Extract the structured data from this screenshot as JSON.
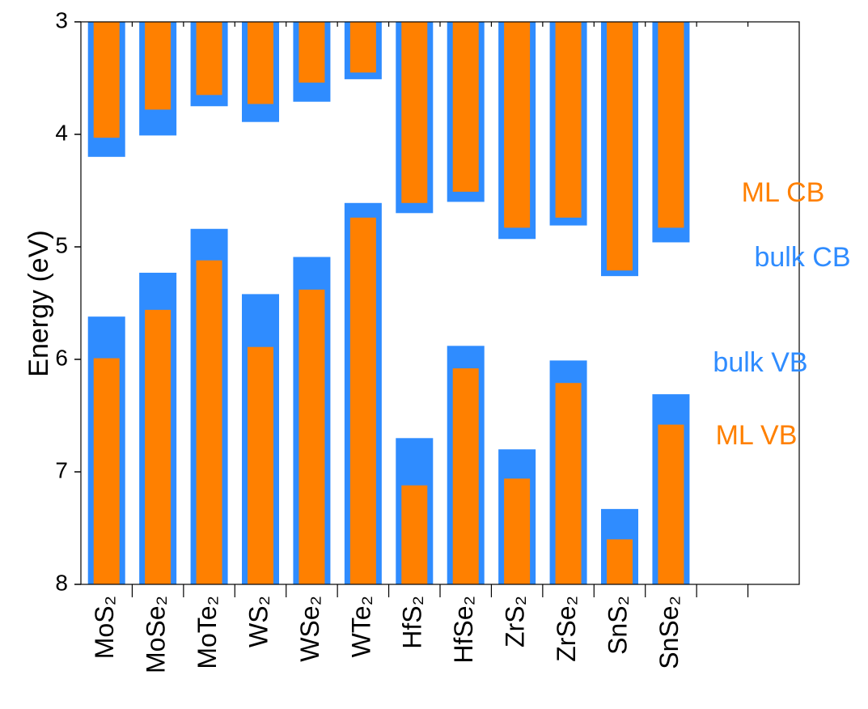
{
  "chart_data": {
    "type": "band-edge",
    "y_label": "Energy (eV)",
    "categories": [
      "MoS₂",
      "MoSe₂",
      "MoTe₂",
      "WS₂",
      "WSe₂",
      "WTe₂",
      "HfS₂",
      "HfSe₂",
      "ZrS₂",
      "ZrSe₂",
      "SnS₂",
      "SnSe₂",
      null,
      null
    ],
    "ylim": [
      3,
      8
    ],
    "y_inverted": true,
    "yticks": [
      3,
      4,
      5,
      6,
      7,
      8
    ],
    "series": [
      {
        "name": "bulk CB",
        "color": "#2f8cff",
        "band": "CB",
        "values": [
          4.2,
          4.01,
          3.75,
          3.89,
          3.71,
          3.51,
          4.7,
          4.6,
          4.93,
          4.81,
          5.26,
          4.96,
          null,
          null
        ]
      },
      {
        "name": "ML CB",
        "color": "#ff8000",
        "band": "CB",
        "values": [
          4.03,
          3.78,
          3.65,
          3.73,
          3.54,
          3.45,
          4.61,
          4.51,
          4.83,
          4.74,
          5.21,
          4.83,
          null,
          null
        ]
      },
      {
        "name": "bulk VB",
        "color": "#2f8cff",
        "band": "VB",
        "values": [
          5.62,
          5.23,
          4.84,
          5.42,
          5.09,
          4.61,
          6.7,
          5.88,
          6.8,
          6.01,
          7.33,
          6.31,
          null,
          null
        ]
      },
      {
        "name": "ML VB",
        "color": "#ff8000",
        "band": "VB",
        "values": [
          5.99,
          5.56,
          5.12,
          5.89,
          5.38,
          4.74,
          7.12,
          6.08,
          7.06,
          6.21,
          7.6,
          6.58,
          null,
          null
        ]
      }
    ]
  }
}
